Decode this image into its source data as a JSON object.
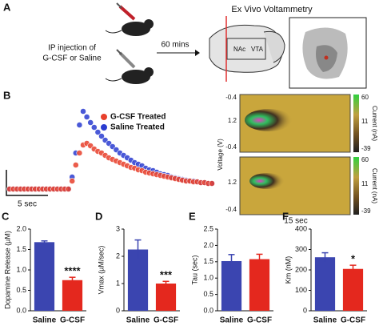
{
  "panel_a": {
    "label": "A",
    "injection": [
      "IP injection of",
      "G-CSF or Saline"
    ],
    "time": "60 mins",
    "title": "Ex Vivo Voltammetry",
    "regions": [
      "NAc",
      "VTA"
    ]
  },
  "panel_b": {
    "label": "B",
    "scale_bar": "5 sec",
    "heatmap": {
      "ylabel": "Voltage (V)",
      "top_yticks": [
        "-0.4",
        "1.2",
        "-0.4"
      ],
      "bottom_yticks": [
        "1.2",
        "-0.4"
      ],
      "colorbar": [
        "60",
        "11",
        "-39"
      ],
      "colorbar_label": "Current (nA)",
      "xlabel": "15 sec"
    }
  },
  "chart_data": [
    {
      "type": "trace",
      "series": [
        {
          "name": "G-CSF Treated",
          "color": "#e8402c",
          "values": [
            0,
            0,
            0,
            0,
            0,
            0,
            0,
            0,
            0,
            0,
            0,
            0,
            0,
            0,
            0,
            0,
            0,
            10,
            30,
            45,
            55,
            57,
            54,
            50,
            47,
            45,
            42,
            39,
            37,
            35,
            33,
            31,
            29,
            27,
            26,
            24,
            23,
            21,
            20,
            19,
            18,
            17,
            16,
            15,
            14,
            13,
            12,
            11,
            10,
            10,
            9,
            9,
            8,
            8,
            7,
            7
          ]
        },
        {
          "name": "Saline Treated",
          "color": "#2a3cd0",
          "values": [
            0,
            0,
            0,
            0,
            0,
            0,
            0,
            0,
            0,
            0,
            0,
            0,
            0,
            0,
            0,
            0,
            0,
            15,
            45,
            80,
            97,
            90,
            83,
            77,
            71,
            66,
            61,
            57,
            53,
            49,
            45,
            42,
            39,
            36,
            33,
            31,
            29,
            26,
            24,
            23,
            21,
            19,
            18,
            17,
            15,
            14,
            13,
            12,
            11,
            10,
            10,
            9,
            8,
            8,
            7,
            7
          ]
        }
      ]
    },
    {
      "type": "bar",
      "label": "C",
      "ylabel": "Dopamine Release (µM)",
      "categories": [
        "Saline",
        "G-CSF"
      ],
      "values": [
        1.68,
        0.75
      ],
      "errors": [
        0.03,
        0.07
      ],
      "colors": [
        "#3b45b0",
        "#e4281e"
      ],
      "ylim": [
        0,
        2
      ],
      "yticks": [
        {
          "value": 0,
          "label": "0.0"
        },
        0.5,
        {
          "value": 1,
          "label": "1.0"
        },
        1.5,
        {
          "value": 2,
          "label": "2.0"
        }
      ],
      "annotation": "****"
    },
    {
      "type": "bar",
      "label": "D",
      "ylabel": "Vmax (µM/sec)",
      "categories": [
        "Saline",
        "G-CSF"
      ],
      "values": [
        2.25,
        1.0
      ],
      "errors": [
        0.35,
        0.08
      ],
      "colors": [
        "#3b45b0",
        "#e4281e"
      ],
      "ylim": [
        0,
        3
      ],
      "yticks": [
        0,
        1,
        2,
        3
      ],
      "annotation": "***"
    },
    {
      "type": "bar",
      "label": "E",
      "ylabel": "Tau (sec)",
      "categories": [
        "Saline",
        "G-CSF"
      ],
      "values": [
        1.52,
        1.58
      ],
      "errors": [
        0.2,
        0.15
      ],
      "colors": [
        "#3b45b0",
        "#e4281e"
      ],
      "ylim": [
        0,
        2.5
      ],
      "yticks": [
        {
          "value": 0,
          "label": "0.0"
        },
        0.5,
        {
          "value": 1,
          "label": "1.0"
        },
        1.5,
        {
          "value": 2,
          "label": "2.0"
        },
        2.5
      ]
    },
    {
      "type": "bar",
      "label": "F",
      "ylabel": "Km (nM)",
      "categories": [
        "Saline",
        "G-CSF"
      ],
      "values": [
        262,
        205
      ],
      "errors": [
        22,
        18
      ],
      "colors": [
        "#3b45b0",
        "#e4281e"
      ],
      "ylim": [
        0,
        400
      ],
      "yticks": [
        0,
        100,
        200,
        300,
        400
      ],
      "annotation": "*"
    }
  ]
}
